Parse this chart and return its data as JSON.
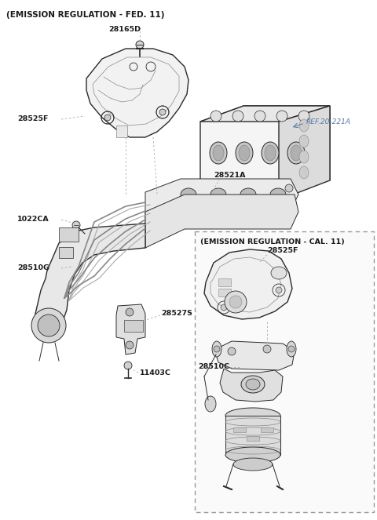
{
  "title_fed": "(EMISSION REGULATION - FED. 11)",
  "title_cal": "(EMISSION REGULATION - CAL. 11)",
  "ref_label": "REF.20-221A",
  "bg_color": "#ffffff",
  "line_color": "#2a2a2a",
  "label_color": "#1a1a1a",
  "ref_color": "#5577aa",
  "figsize": [
    4.8,
    6.63
  ],
  "dpi": 100
}
